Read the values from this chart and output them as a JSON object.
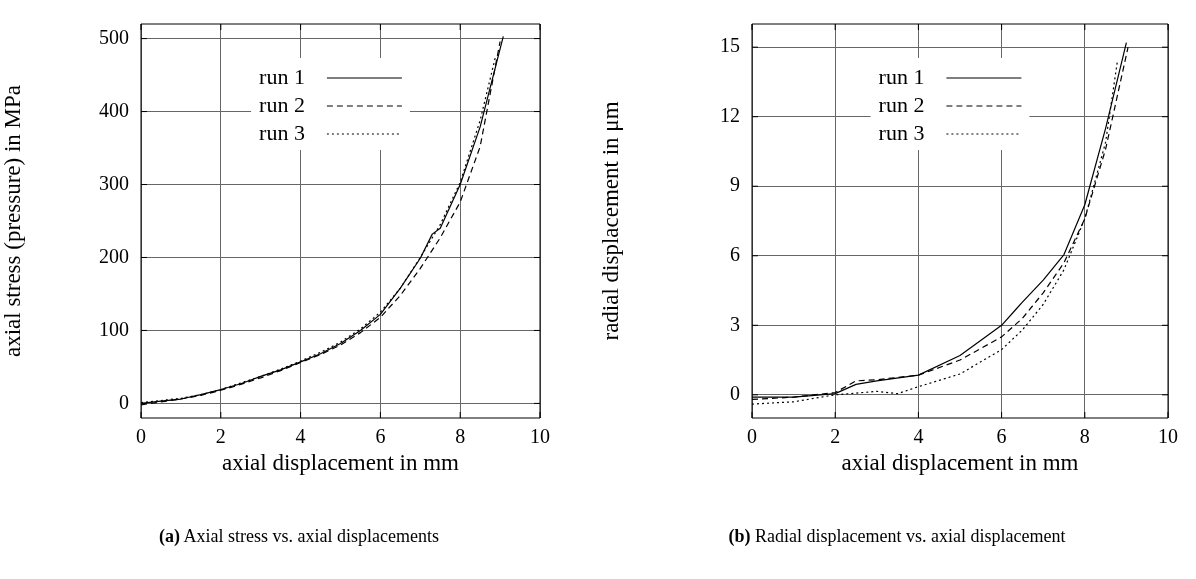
{
  "chart_data": [
    {
      "type": "line",
      "xlabel": "axial displacement in mm",
      "ylabel": "axial stress (pressure) in MPa",
      "annotations": [
        "(a) Axial stress vs. axial displacements"
      ],
      "xlim": [
        0,
        10
      ],
      "xticks": [
        0,
        2,
        4,
        6,
        8,
        10
      ],
      "ylim": [
        -20,
        520
      ],
      "yticks": [
        0,
        100,
        200,
        300,
        400,
        500
      ],
      "grid": true,
      "legend": "top",
      "marker": "none",
      "series": [
        {
          "name": "run 1",
          "color": "#000000",
          "line_style": "solid",
          "x": [
            0,
            0.5,
            1,
            1.5,
            2,
            2.5,
            3,
            3.5,
            4,
            4.5,
            5,
            5.5,
            6,
            6.5,
            7,
            7.3,
            7.5,
            8,
            8.5,
            9.08
          ],
          "values": [
            0,
            3,
            6,
            12,
            19,
            27,
            37,
            46,
            57,
            68,
            82,
            100,
            122,
            158,
            199,
            232,
            240,
            300,
            379,
            503
          ]
        },
        {
          "name": "run 2",
          "color": "#000000",
          "line_style": "dashed",
          "x": [
            0,
            0.5,
            1,
            1.5,
            2,
            2.5,
            3,
            3.5,
            4,
            4.5,
            5,
            5.5,
            6,
            6.5,
            7,
            7.5,
            8,
            8.5,
            9.0
          ],
          "values": [
            -2,
            2,
            6,
            11,
            18,
            26,
            35,
            45,
            56,
            67,
            80,
            97,
            118,
            148,
            185,
            227,
            276,
            352,
            496
          ]
        },
        {
          "name": "run 3",
          "color": "#000000",
          "line_style": "dotted",
          "x": [
            0,
            0.5,
            1,
            1.5,
            2,
            2.5,
            3,
            3.5,
            4,
            4.5,
            5,
            5.5,
            6,
            6.5,
            7,
            7.5,
            8,
            8.5,
            8.88
          ],
          "values": [
            1,
            4,
            7,
            12,
            19,
            28,
            37,
            47,
            58,
            70,
            84,
            102,
            125,
            158,
            200,
            245,
            303,
            388,
            474
          ]
        }
      ]
    },
    {
      "type": "line",
      "xlabel": "axial displacement in mm",
      "ylabel": "radial displacement in μm",
      "annotations": [
        "(b) Radial displacement vs. axial displacement"
      ],
      "xlim": [
        0,
        10
      ],
      "xticks": [
        0,
        2,
        4,
        6,
        8,
        10
      ],
      "ylim": [
        -1,
        16
      ],
      "yticks": [
        0,
        3,
        6,
        9,
        12,
        15
      ],
      "grid": true,
      "legend": "top",
      "marker": "none",
      "series": [
        {
          "name": "run 1",
          "color": "#000000",
          "line_style": "solid",
          "x": [
            0,
            1,
            2,
            2.5,
            3,
            4,
            5,
            6,
            6.5,
            7,
            7.5,
            8,
            8.5,
            9.0
          ],
          "values": [
            -0.1,
            -0.1,
            0.05,
            0.45,
            0.6,
            0.85,
            1.7,
            3.0,
            4.0,
            4.95,
            6.05,
            8.2,
            11.5,
            15.2
          ]
        },
        {
          "name": "run 2",
          "color": "#000000",
          "line_style": "dashed",
          "x": [
            0,
            1,
            2,
            2.5,
            3,
            4,
            5,
            6,
            6.5,
            7,
            7.5,
            8,
            8.5,
            9.04
          ],
          "values": [
            -0.2,
            -0.1,
            0.1,
            0.6,
            0.65,
            0.85,
            1.5,
            2.5,
            3.3,
            4.4,
            5.7,
            7.6,
            10.6,
            15.0
          ]
        },
        {
          "name": "run 3",
          "color": "#000000",
          "line_style": "dotted",
          "x": [
            0,
            1,
            2,
            3,
            3.5,
            4,
            5,
            6,
            6.5,
            7,
            7.5,
            8,
            8.5,
            8.78
          ],
          "values": [
            -0.4,
            -0.3,
            0.0,
            0.15,
            0.05,
            0.35,
            0.9,
            1.95,
            2.8,
            3.9,
            5.4,
            7.6,
            10.9,
            14.35
          ]
        }
      ]
    }
  ]
}
